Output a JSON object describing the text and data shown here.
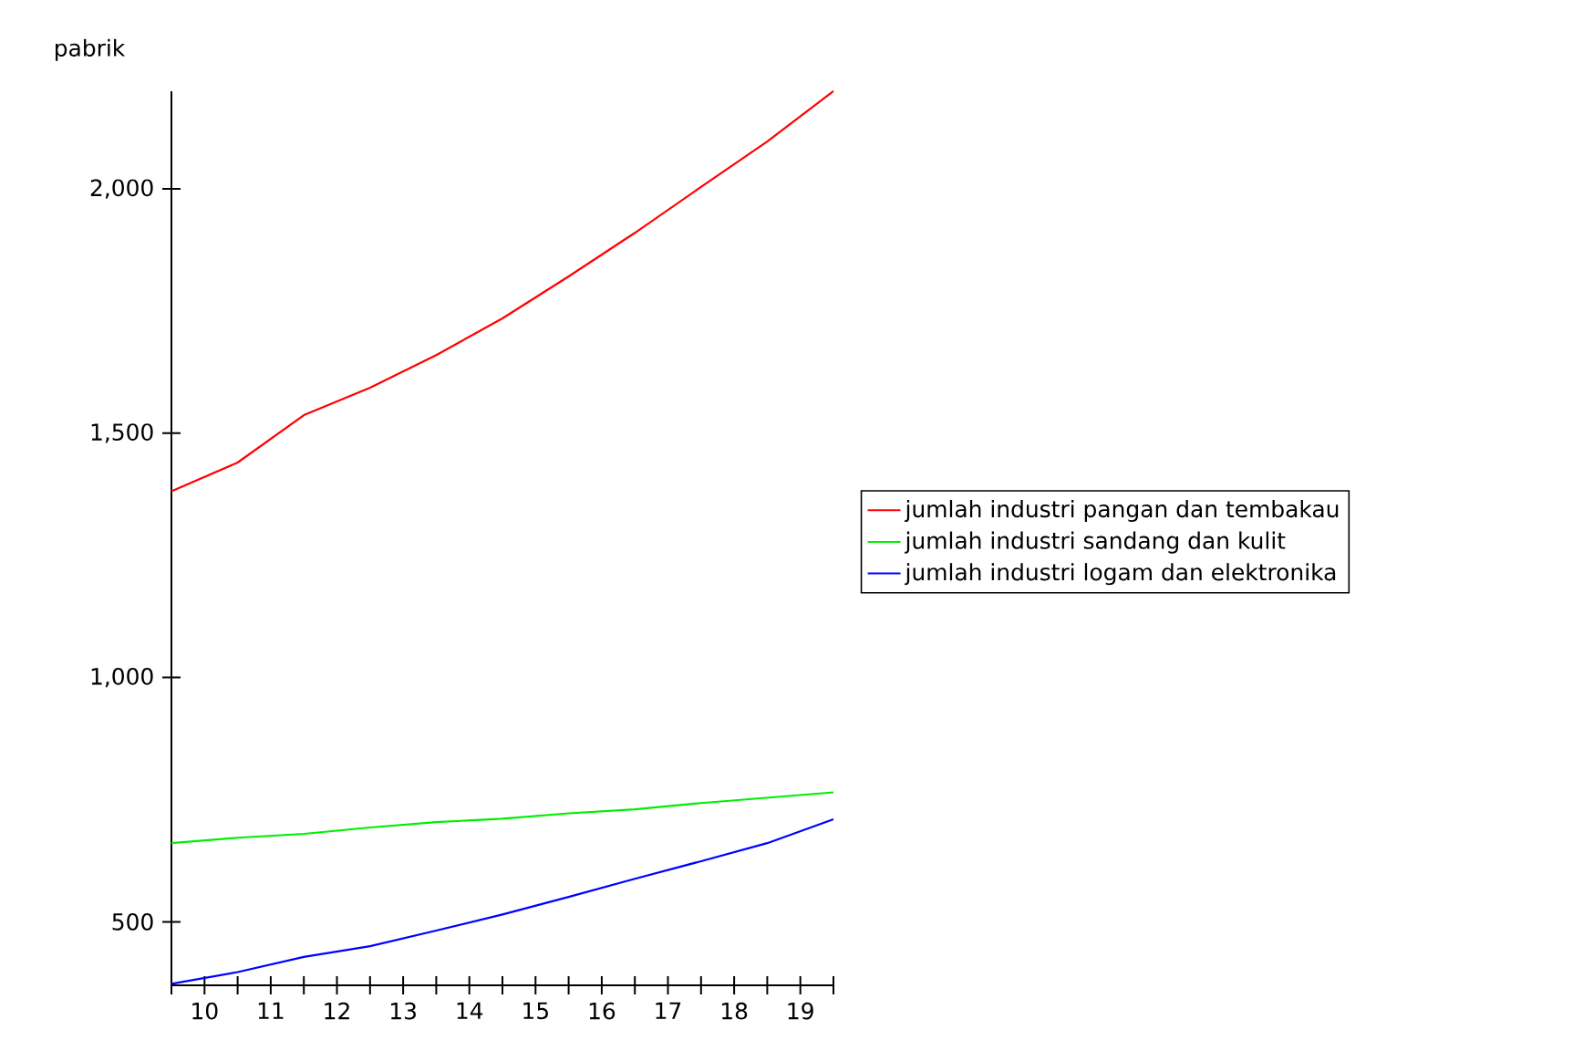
{
  "chart_data": {
    "type": "line",
    "ylabel": "pabrik",
    "x": [
      10,
      11,
      12,
      13,
      14,
      15,
      16,
      17,
      18,
      19,
      20
    ],
    "series": [
      {
        "name": "jumlah industri pangan dan tembakau",
        "color": "#ff0000",
        "values": [
          1381,
          1440,
          1537,
          1593,
          1660,
          1735,
          1821,
          1910,
          2004,
          2097,
          2200
        ]
      },
      {
        "name": "jumlah industri sandang dan kulit",
        "color": "#00ee00",
        "values": [
          661,
          672,
          680,
          693,
          704,
          711,
          722,
          730,
          743,
          754,
          765
        ]
      },
      {
        "name": "jumlah industri logam dan elektronika",
        "color": "#0000ff",
        "values": [
          373,
          397,
          428,
          450,
          482,
          515,
          551,
          588,
          624,
          661,
          710
        ]
      }
    ],
    "xlim": [
      10,
      20
    ],
    "xticks": [
      {
        "value": 10,
        "label": null
      },
      {
        "value": 10.5,
        "label": "10"
      },
      {
        "value": 11,
        "label": null
      },
      {
        "value": 11.5,
        "label": "11"
      },
      {
        "value": 12,
        "label": null
      },
      {
        "value": 12.5,
        "label": "12"
      },
      {
        "value": 13,
        "label": null
      },
      {
        "value": 13.5,
        "label": "13"
      },
      {
        "value": 14,
        "label": null
      },
      {
        "value": 14.5,
        "label": "14"
      },
      {
        "value": 15,
        "label": null
      },
      {
        "value": 15.5,
        "label": "15"
      },
      {
        "value": 16,
        "label": null
      },
      {
        "value": 16.5,
        "label": "16"
      },
      {
        "value": 17,
        "label": null
      },
      {
        "value": 17.5,
        "label": "17"
      },
      {
        "value": 18,
        "label": null
      },
      {
        "value": 18.5,
        "label": "18"
      },
      {
        "value": 19,
        "label": null
      },
      {
        "value": 19.5,
        "label": "19"
      },
      {
        "value": 20,
        "label": null
      }
    ],
    "ylim": [
      370,
      2200
    ],
    "yticks": [
      {
        "value": 500,
        "label": "500"
      },
      {
        "value": 1000,
        "label": "1,000"
      },
      {
        "value": 1500,
        "label": "1,500"
      },
      {
        "value": 2000,
        "label": "2,000"
      }
    ],
    "legend": "right",
    "grid": false,
    "marker": "none",
    "line_style": "solid"
  }
}
